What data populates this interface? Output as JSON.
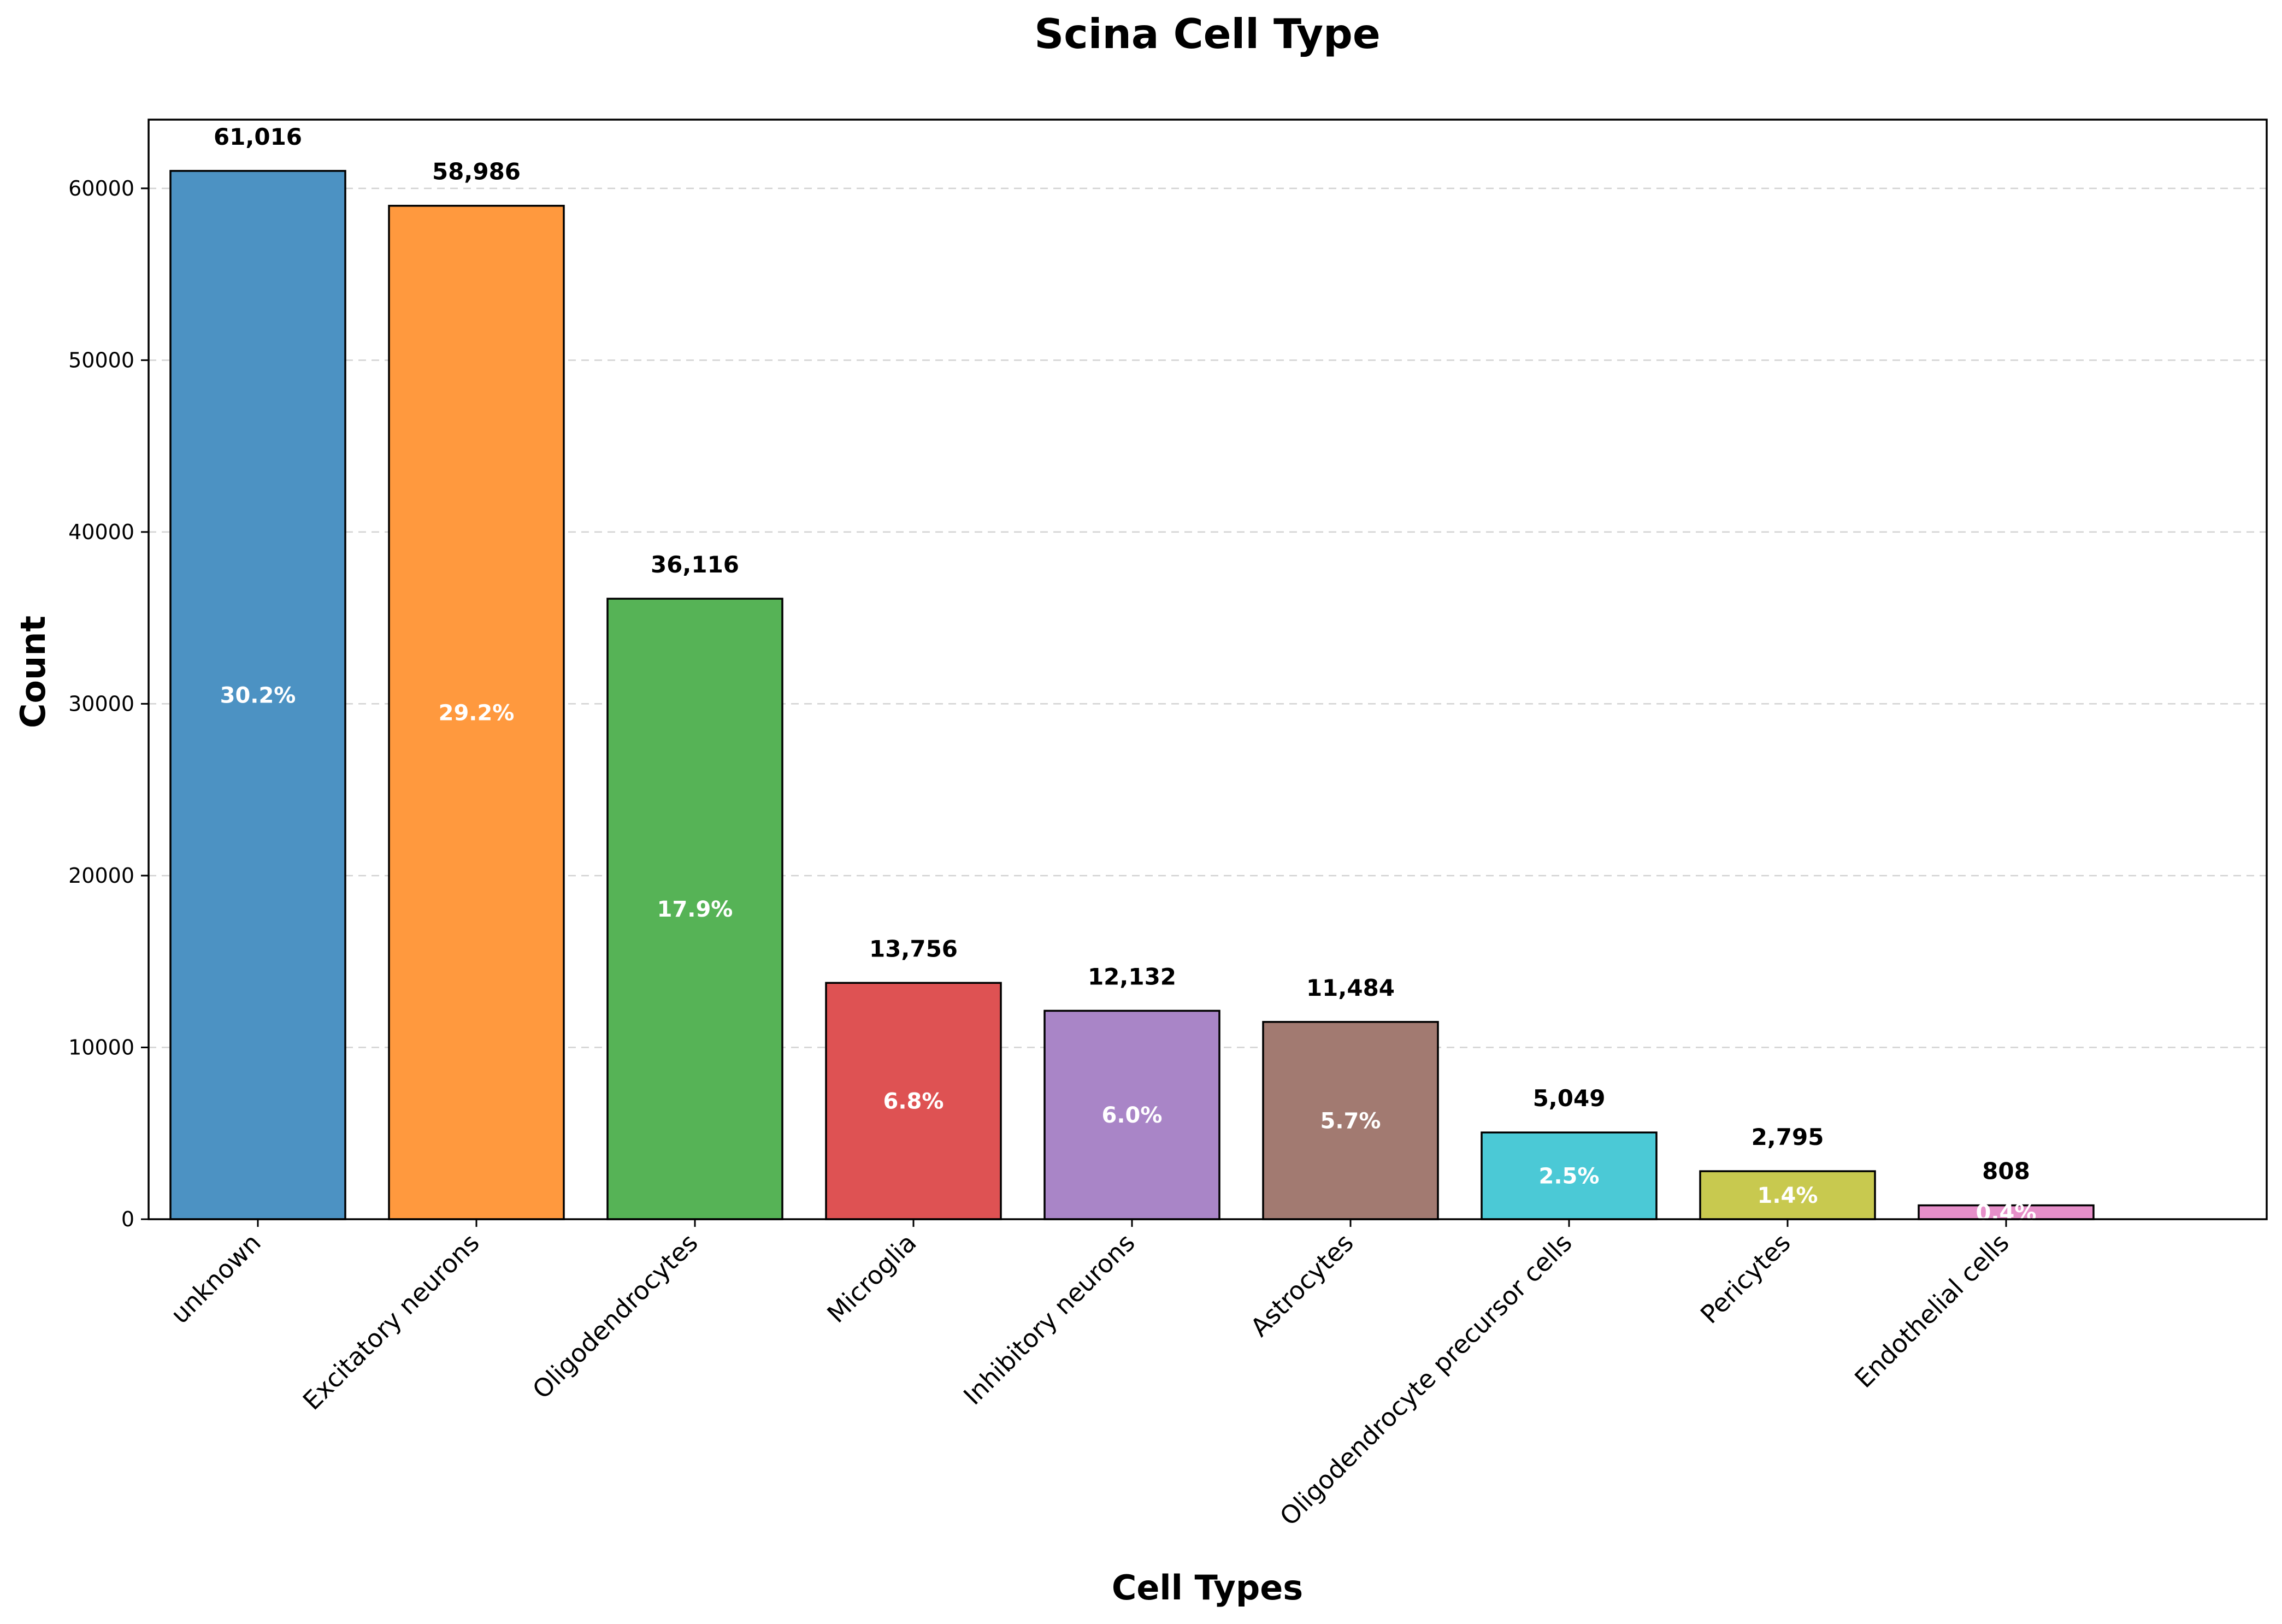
{
  "chart_data": {
    "type": "bar",
    "title": "Scina Cell Type",
    "xlabel": "Cell Types",
    "ylabel": "Count",
    "ylim": [
      0,
      64000
    ],
    "yticks": [
      0,
      10000,
      20000,
      30000,
      40000,
      50000,
      60000
    ],
    "grid": "y-dashed",
    "categories": [
      "unknown",
      "Excitatory neurons",
      "Oligodendrocytes",
      "Microglia",
      "Inhibitory neurons",
      "Astrocytes",
      "Oligodendrocyte precursor cells",
      "Pericytes",
      "Endothelial cells"
    ],
    "values": [
      61016,
      58986,
      36116,
      13756,
      12132,
      11484,
      5049,
      2795,
      808
    ],
    "value_labels": [
      "61,016",
      "58,986",
      "36,116",
      "13,756",
      "12,132",
      "11,484",
      "5,049",
      "2,795",
      "808"
    ],
    "percent_labels": [
      "30.2%",
      "29.2%",
      "17.9%",
      "6.8%",
      "6.0%",
      "5.7%",
      "2.5%",
      "1.4%",
      "0.4%"
    ],
    "colors": [
      "#4c92c3",
      "#ff993e",
      "#56b356",
      "#de5253",
      "#a985c7",
      "#a27a71",
      "#4bc9d6",
      "#c8c94f",
      "#e68fc9"
    ]
  }
}
